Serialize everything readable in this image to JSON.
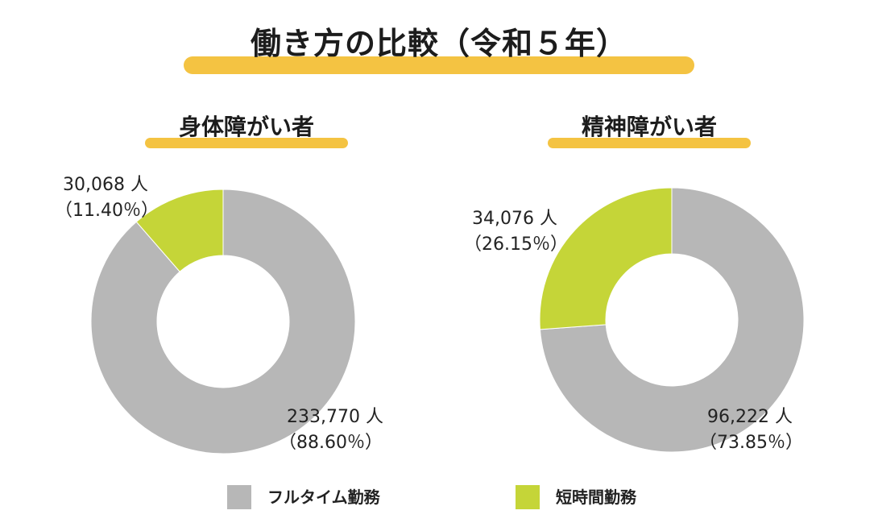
{
  "title": "働き方の比較（令和５年）",
  "colors": {
    "full_time": "#b7b7b7",
    "short_time": "#c5d538",
    "accent": "#f4c342"
  },
  "legend": [
    {
      "label": "フルタイム勤務",
      "color": "#b7b7b7"
    },
    {
      "label": "短時間勤務",
      "color": "#c5d538"
    }
  ],
  "chart_data": [
    {
      "type": "pie",
      "subtitle": "身体障がい者",
      "categories": [
        "フルタイム勤務",
        "短時間勤務"
      ],
      "values": [
        233770,
        30068
      ],
      "percents": [
        88.6,
        11.4
      ],
      "labels": [
        {
          "count": "233,770 人",
          "percent": "（88.60％）"
        },
        {
          "count": "30,068 人",
          "percent": "（11.40％）"
        }
      ],
      "colors": [
        "#b7b7b7",
        "#c5d538"
      ]
    },
    {
      "type": "pie",
      "subtitle": "精神障がい者",
      "categories": [
        "フルタイム勤務",
        "短時間勤務"
      ],
      "values": [
        96222,
        34076
      ],
      "percents": [
        73.85,
        26.15
      ],
      "labels": [
        {
          "count": "96,222 人",
          "percent": "（73.85％）"
        },
        {
          "count": "34,076 人",
          "percent": "（26.15％）"
        }
      ],
      "colors": [
        "#b7b7b7",
        "#c5d538"
      ]
    }
  ]
}
